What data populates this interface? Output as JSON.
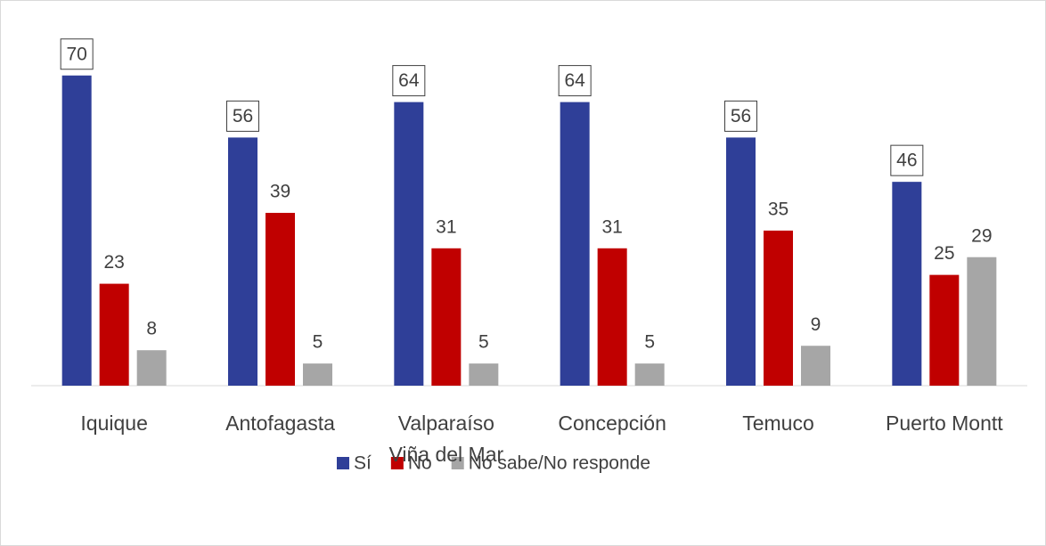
{
  "chart_data": {
    "type": "bar",
    "categories": [
      "Iquique",
      "Antofagasta",
      "Valparaíso\nViña del Mar",
      "Concepción",
      "Temuco",
      "Puerto Montt"
    ],
    "series": [
      {
        "name": "Sí",
        "color": "#2f3f98",
        "values": [
          70,
          56,
          64,
          64,
          56,
          46
        ]
      },
      {
        "name": "No",
        "color": "#c00000",
        "values": [
          23,
          39,
          31,
          31,
          35,
          25
        ]
      },
      {
        "name": "No sabe/No responde",
        "color": "#a6a6a6",
        "values": [
          8,
          5,
          5,
          5,
          9,
          29
        ]
      }
    ],
    "ylim": [
      0,
      80
    ],
    "legend": "bottom"
  }
}
